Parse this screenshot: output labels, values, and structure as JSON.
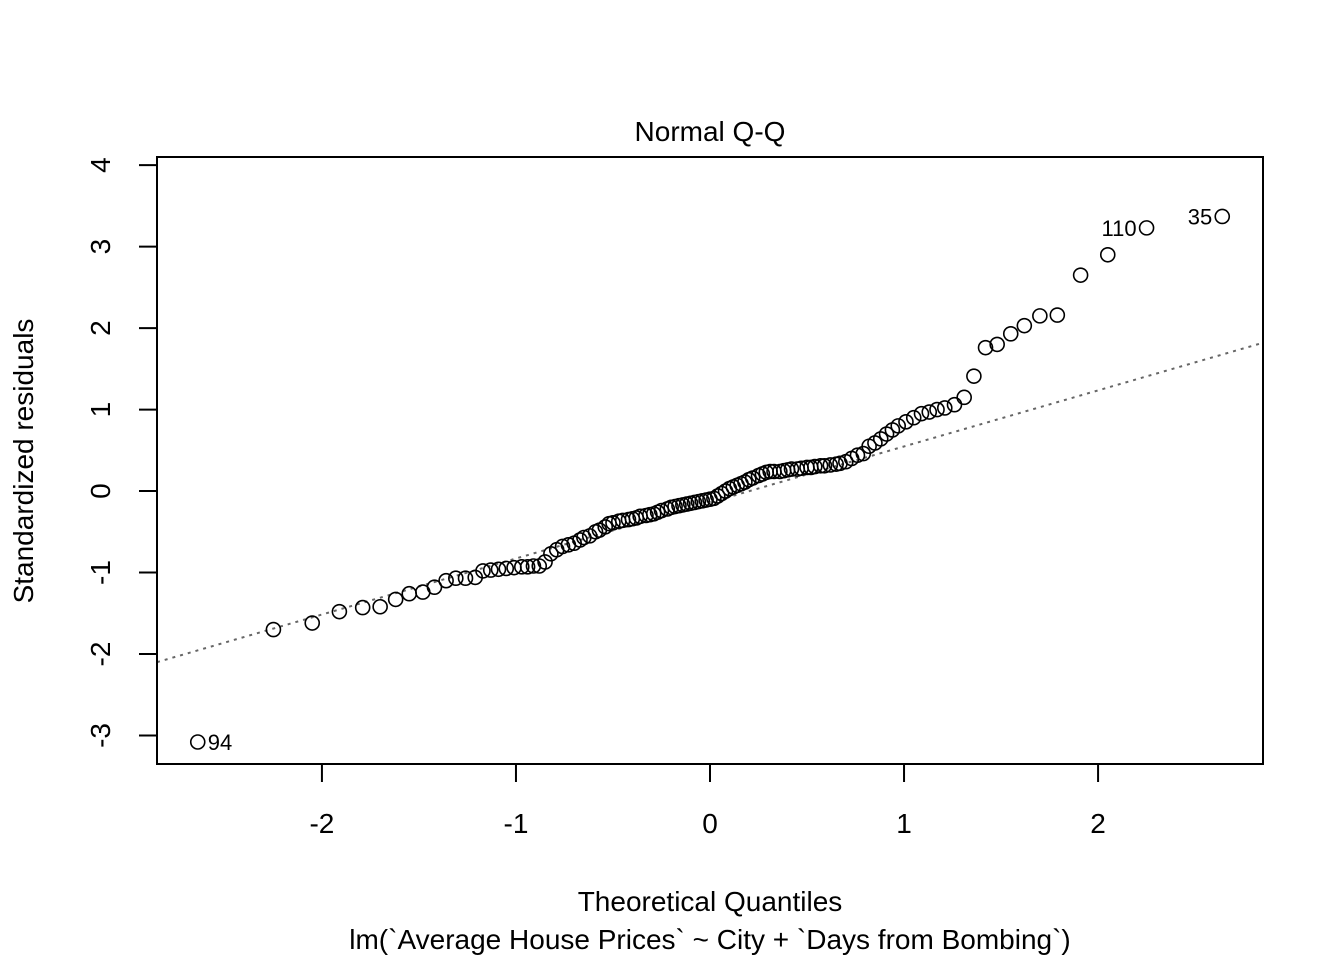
{
  "chart_data": {
    "type": "scatter",
    "title": "Normal Q-Q",
    "xlabel": "Theoretical Quantiles",
    "subtitle": "lm(`Average House Prices` ~ City + `Days from Bombing`)",
    "ylabel": "Standardized residuals",
    "xlim": [
      -2.85,
      2.85
    ],
    "ylim": [
      -3.35,
      4.1
    ],
    "x_ticks": [
      -2,
      -1,
      0,
      1,
      2
    ],
    "x_tick_labels": [
      "-2",
      "-1",
      "0",
      "1",
      "2"
    ],
    "y_ticks": [
      -3,
      -2,
      -1,
      0,
      1,
      2,
      3,
      4
    ],
    "y_tick_labels": [
      "-3",
      "-2",
      "-1",
      "0",
      "1",
      "2",
      "3",
      "4"
    ],
    "grid": false,
    "reference_line": {
      "style": "dotted",
      "color": "#666666",
      "points": [
        [
          -2.85,
          -2.1
        ],
        [
          2.85,
          1.82
        ]
      ]
    },
    "point_labels": [
      {
        "text": "94",
        "x": -2.64,
        "y": -3.08
      },
      {
        "text": "110",
        "x": 2.25,
        "y": 3.23
      },
      {
        "text": "35",
        "x": 2.64,
        "y": 3.37
      }
    ],
    "x": [
      -2.64,
      -2.25,
      -2.05,
      -1.91,
      -1.79,
      -1.7,
      -1.62,
      -1.55,
      -1.48,
      -1.42,
      -1.36,
      -1.31,
      -1.26,
      -1.21,
      -1.17,
      -1.13,
      -1.09,
      -1.05,
      -1.01,
      -0.97,
      -0.94,
      -0.91,
      -0.88,
      -0.85,
      -0.82,
      -0.79,
      -0.76,
      -0.73,
      -0.7,
      -0.67,
      -0.65,
      -0.62,
      -0.59,
      -0.57,
      -0.54,
      -0.52,
      -0.5,
      -0.47,
      -0.45,
      -0.42,
      -0.4,
      -0.38,
      -0.36,
      -0.33,
      -0.31,
      -0.29,
      -0.27,
      -0.25,
      -0.22,
      -0.2,
      -0.18,
      -0.16,
      -0.14,
      -0.12,
      -0.1,
      -0.08,
      -0.06,
      -0.04,
      -0.02,
      0.0,
      0.02,
      0.04,
      0.06,
      0.08,
      0.1,
      0.12,
      0.14,
      0.16,
      0.18,
      0.2,
      0.22,
      0.25,
      0.27,
      0.29,
      0.31,
      0.33,
      0.36,
      0.38,
      0.4,
      0.42,
      0.45,
      0.47,
      0.5,
      0.52,
      0.54,
      0.57,
      0.59,
      0.62,
      0.65,
      0.67,
      0.7,
      0.73,
      0.76,
      0.79,
      0.82,
      0.85,
      0.88,
      0.91,
      0.94,
      0.97,
      1.01,
      1.05,
      1.09,
      1.13,
      1.17,
      1.21,
      1.26,
      1.31,
      1.36,
      1.42,
      1.48,
      1.55,
      1.62,
      1.7,
      1.79,
      1.91,
      2.05,
      2.25,
      2.64
    ],
    "y": [
      -3.08,
      -1.7,
      -1.62,
      -1.48,
      -1.43,
      -1.42,
      -1.33,
      -1.26,
      -1.24,
      -1.18,
      -1.1,
      -1.07,
      -1.07,
      -1.06,
      -0.98,
      -0.97,
      -0.96,
      -0.95,
      -0.94,
      -0.93,
      -0.93,
      -0.92,
      -0.92,
      -0.87,
      -0.77,
      -0.72,
      -0.68,
      -0.66,
      -0.64,
      -0.6,
      -0.57,
      -0.55,
      -0.5,
      -0.48,
      -0.44,
      -0.4,
      -0.39,
      -0.37,
      -0.36,
      -0.35,
      -0.34,
      -0.33,
      -0.31,
      -0.3,
      -0.29,
      -0.28,
      -0.26,
      -0.24,
      -0.22,
      -0.2,
      -0.19,
      -0.18,
      -0.17,
      -0.16,
      -0.15,
      -0.14,
      -0.13,
      -0.12,
      -0.11,
      -0.1,
      -0.09,
      -0.06,
      -0.03,
      0.0,
      0.03,
      0.05,
      0.07,
      0.09,
      0.11,
      0.14,
      0.16,
      0.19,
      0.21,
      0.23,
      0.24,
      0.24,
      0.24,
      0.25,
      0.26,
      0.27,
      0.27,
      0.28,
      0.29,
      0.29,
      0.3,
      0.31,
      0.31,
      0.32,
      0.33,
      0.34,
      0.36,
      0.4,
      0.44,
      0.46,
      0.55,
      0.59,
      0.64,
      0.7,
      0.75,
      0.8,
      0.85,
      0.9,
      0.95,
      0.97,
      1.0,
      1.02,
      1.06,
      1.15,
      1.41,
      1.76,
      1.8,
      1.93,
      2.03,
      2.15,
      2.16,
      2.65,
      2.9,
      3.23,
      3.37
    ]
  }
}
